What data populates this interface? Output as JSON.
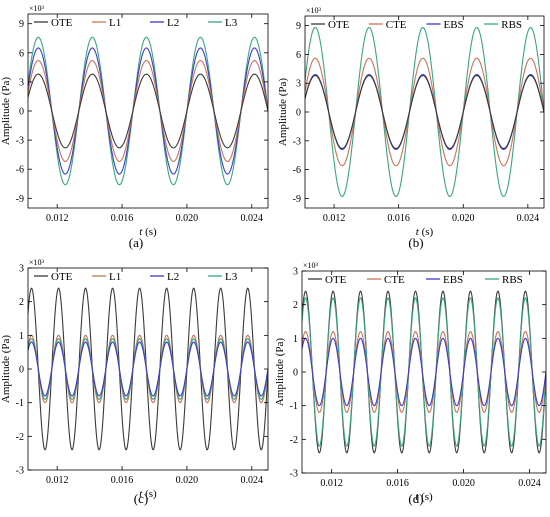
{
  "chart_data": [
    {
      "id": "a",
      "type": "line",
      "caption": "(a)",
      "xlabel": "t (s)",
      "xlabel_var": "t",
      "xlabel_unit": " (s)",
      "ylabel": "Amplitude (Pa)",
      "multiplier": "×10³",
      "xlim": [
        0.0102,
        0.025
      ],
      "ylim": [
        -10,
        10
      ],
      "yticks": [
        -9,
        -6,
        -3,
        0,
        3,
        6,
        9
      ],
      "xticks": [
        0.012,
        0.016,
        0.02,
        0.024
      ],
      "xtick_labels": [
        "0.012",
        "0.016",
        "0.020",
        "0.024"
      ],
      "freq": 300,
      "legend_position": "top",
      "grid": false,
      "series": [
        {
          "name": "OTE",
          "amplitude": 3.8,
          "color": "#3a3a3a"
        },
        {
          "name": "L1",
          "amplitude": 5.2,
          "color": "#c87456"
        },
        {
          "name": "L2",
          "amplitude": 6.5,
          "color": "#3c3cc8"
        },
        {
          "name": "L3",
          "amplitude": 7.6,
          "color": "#3aa582"
        }
      ]
    },
    {
      "id": "b",
      "type": "line",
      "caption": "(b)",
      "xlabel": "t (s)",
      "xlabel_var": "t",
      "xlabel_unit": " (s)",
      "ylabel": "Amplitude (Pa)",
      "multiplier": "×10³",
      "xlim": [
        0.0102,
        0.025
      ],
      "ylim": [
        -10,
        10
      ],
      "yticks": [
        -9,
        -6,
        -3,
        0,
        3,
        6,
        9
      ],
      "xticks": [
        0.012,
        0.016,
        0.02,
        0.024
      ],
      "xtick_labels": [
        "0.012",
        "0.016",
        "0.020",
        "0.024"
      ],
      "freq": 300,
      "legend_position": "top",
      "grid": false,
      "series": [
        {
          "name": "OTE",
          "amplitude": 3.8,
          "color": "#3a3a3a"
        },
        {
          "name": "CTE",
          "amplitude": 5.6,
          "color": "#c87456"
        },
        {
          "name": "EBS",
          "amplitude": 3.9,
          "color": "#3c3cc8"
        },
        {
          "name": "RBS",
          "amplitude": 8.8,
          "color": "#3aa582"
        }
      ]
    },
    {
      "id": "c",
      "type": "line",
      "caption": "(c)",
      "xlabel": "t (s)",
      "xlabel_var": "t",
      "xlabel_unit": " (s)",
      "ylabel": "Amplitude (Pa)",
      "multiplier": "×10³",
      "xlim": [
        0.0102,
        0.025
      ],
      "ylim": [
        -3,
        3
      ],
      "yticks": [
        -3,
        -2,
        -1,
        0,
        1,
        2,
        3
      ],
      "xticks": [
        0.012,
        0.016,
        0.02,
        0.024
      ],
      "xtick_labels": [
        "0.012",
        "0.016",
        "0.020",
        "0.024"
      ],
      "freq": 600,
      "legend_position": "top",
      "grid": false,
      "series": [
        {
          "name": "OTE",
          "amplitude": 2.4,
          "color": "#3a3a3a"
        },
        {
          "name": "L1",
          "amplitude": 1.0,
          "color": "#c87456"
        },
        {
          "name": "L2",
          "amplitude": 0.8,
          "color": "#3c3cc8"
        },
        {
          "name": "L3",
          "amplitude": 0.9,
          "color": "#3aa582"
        }
      ]
    },
    {
      "id": "d",
      "type": "line",
      "caption": "(d)",
      "xlabel": "t (s)",
      "xlabel_var": "t",
      "xlabel_unit": " (s)",
      "ylabel": "Amplitude (Pa)",
      "multiplier": "×10³",
      "xlim": [
        0.0102,
        0.025
      ],
      "ylim": [
        -3,
        3
      ],
      "yticks": [
        -3,
        -2,
        -1,
        0,
        1,
        2,
        3
      ],
      "xticks": [
        0.012,
        0.016,
        0.02,
        0.024
      ],
      "xtick_labels": [
        "0.012",
        "0.016",
        "0.020",
        "0.024"
      ],
      "freq": 600,
      "legend_position": "top",
      "grid": false,
      "series": [
        {
          "name": "OTE",
          "amplitude": 2.4,
          "color": "#3a3a3a"
        },
        {
          "name": "CTE",
          "amplitude": 1.2,
          "color": "#c87456"
        },
        {
          "name": "EBS",
          "amplitude": 1.0,
          "color": "#3c3cc8"
        },
        {
          "name": "RBS",
          "amplitude": 2.2,
          "color": "#3aa582"
        }
      ]
    }
  ]
}
